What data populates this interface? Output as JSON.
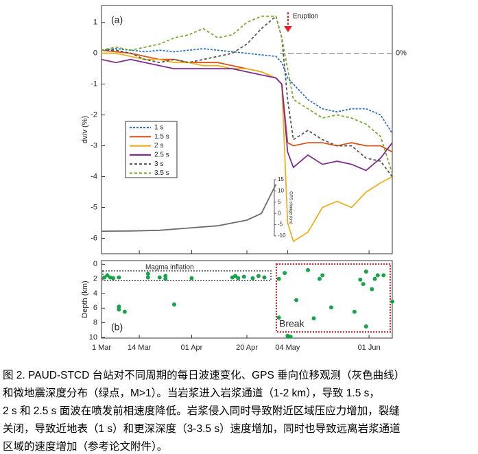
{
  "chart_data": [
    {
      "type": "line",
      "panel_label": "(a)",
      "ylabel": "dv/v (%)",
      "xlim": [
        "03-01",
        "06-09"
      ],
      "ylim": [
        -6.5,
        1.55
      ],
      "yticks": [
        1,
        0,
        -1,
        -2,
        -3,
        -4,
        -5,
        -6
      ],
      "reference_label": "0%",
      "annotation": "Eruption",
      "legend": "left",
      "x": [
        "03-01",
        "03-06",
        "03-11",
        "03-16",
        "03-21",
        "03-26",
        "03-31",
        "04-05",
        "04-10",
        "04-15",
        "04-20",
        "04-25",
        "04-30",
        "05-02",
        "05-04",
        "05-06",
        "05-11",
        "05-16",
        "05-21",
        "05-26",
        "05-31",
        "06-05",
        "06-09"
      ],
      "series": [
        {
          "name": "1 s",
          "color": "#2a72c4",
          "style": "dotted",
          "values": [
            0.1,
            0.15,
            0.1,
            0.05,
            0.1,
            0.05,
            0.1,
            0.15,
            0.1,
            0.05,
            0,
            -0.05,
            -0.1,
            -0.3,
            -0.8,
            -1.0,
            -1.5,
            -1.8,
            -1.9,
            -1.8,
            -1.8,
            -2.0,
            -2.6
          ]
        },
        {
          "name": "1.5 s",
          "color": "#d9541a",
          "style": "solid",
          "values": [
            0.1,
            0.05,
            0,
            -0.1,
            -0.2,
            -0.2,
            -0.3,
            -0.3,
            -0.3,
            -0.4,
            -0.5,
            -0.6,
            -0.8,
            -1.0,
            -2.9,
            -3.0,
            -2.9,
            -2.9,
            -3.0,
            -2.9,
            -3.0,
            -3.0,
            -3.2
          ]
        },
        {
          "name": "2 s",
          "color": "#edb120",
          "style": "solid",
          "values": [
            0,
            0,
            -0.1,
            -0.2,
            -0.2,
            -0.3,
            -0.3,
            -0.4,
            -0.4,
            -0.5,
            -0.5,
            -0.6,
            -0.8,
            -1.0,
            -5.5,
            -6.1,
            -5.8,
            -5.0,
            -4.8,
            -5.0,
            -4.5,
            -4.2,
            -4.0
          ]
        },
        {
          "name": "2.5 s",
          "color": "#7e2f8e",
          "style": "solid",
          "values": [
            -0.2,
            -0.3,
            -0.2,
            -0.3,
            -0.4,
            -0.5,
            -0.5,
            -0.5,
            -0.5,
            -0.5,
            -0.6,
            -0.7,
            -0.8,
            -1.0,
            -3.2,
            -3.7,
            -3.3,
            -3.6,
            -3.5,
            -3.6,
            -3.8,
            -3.4,
            -2.9
          ]
        },
        {
          "name": "3 s",
          "color": "#555555",
          "style": "dashed",
          "values": [
            0.1,
            0.1,
            0,
            -0.2,
            -0.3,
            -0.2,
            -0.3,
            -0.2,
            -0.1,
            0,
            0.3,
            0.8,
            1.2,
            0.5,
            -1.5,
            -2.8,
            -2.5,
            -2.8,
            -3.0,
            -3.0,
            -3.4,
            -3.5,
            -4.0
          ]
        },
        {
          "name": "3.5 s",
          "color": "#77ac30",
          "style": "dashed",
          "values": [
            0.1,
            0.2,
            0.1,
            0.2,
            0.3,
            0.5,
            0.6,
            0.8,
            0.5,
            0.6,
            1.0,
            1.2,
            1.2,
            0.5,
            -0.5,
            -1.5,
            -1.8,
            -2.1,
            -2.0,
            -2.1,
            -2.3,
            -2.7,
            -3.9
          ]
        },
        {
          "name": "GPS change (cm)",
          "color": "#6b6b6b",
          "style": "solid",
          "axis": "y2",
          "x": [
            "03-01",
            "03-11",
            "03-21",
            "03-31",
            "04-10",
            "04-20",
            "04-25",
            "04-30"
          ],
          "values": [
            -7.9,
            -7.8,
            -7.5,
            -6.5,
            -5.5,
            -3.0,
            0,
            13
          ]
        }
      ],
      "y2lim": [
        -10,
        15
      ],
      "y2ticks": [
        15,
        10,
        5,
        0,
        -5,
        -10
      ]
    },
    {
      "type": "scatter",
      "panel_label": "(b)",
      "ylabel": "Depth (km)",
      "color": "#1aa34a",
      "xlim": [
        "03-01",
        "06-09"
      ],
      "ylim": [
        -0.5,
        10.1
      ],
      "y_reversed": true,
      "yticks": [
        0,
        2,
        4,
        6,
        8,
        10
      ],
      "xticks": [
        {
          "value": "03-01",
          "label": "1 Mar"
        },
        {
          "value": "03-14",
          "label": "14 Mar"
        },
        {
          "value": "04-01",
          "label": "01 Apr"
        },
        {
          "value": "04-20",
          "label": "20 Apr"
        },
        {
          "value": "05-04",
          "label": "04 May"
        },
        {
          "value": "06-01",
          "label": "01 Jun"
        }
      ],
      "annotations": [
        "Magma inflation",
        "Break"
      ],
      "x": [
        "03-02",
        "03-03",
        "03-04",
        "03-05",
        "03-07",
        "03-07",
        "03-07",
        "03-09",
        "03-17",
        "03-17",
        "03-21",
        "03-23",
        "03-23",
        "03-26",
        "04-01",
        "04-15",
        "04-16",
        "04-17",
        "04-19",
        "04-22",
        "04-24",
        "04-26",
        "05-01",
        "05-01",
        "05-03",
        "05-04",
        "05-05",
        "05-07",
        "05-11",
        "05-13",
        "05-15",
        "05-16",
        "05-19",
        "05-27",
        "05-29",
        "05-30",
        "05-31",
        "05-31",
        "06-02",
        "06-03",
        "06-04",
        "06-06",
        "06-09"
      ],
      "values": [
        1.8,
        1.5,
        1.8,
        1.9,
        1.8,
        5.8,
        6.2,
        6.5,
        1.3,
        1.8,
        1.8,
        1.6,
        2.0,
        5.5,
        1.9,
        1.8,
        1.6,
        1.9,
        1.7,
        1.9,
        1.6,
        1.8,
        7.3,
        2.0,
        1.2,
        9.8,
        9.9,
        4.9,
        0.8,
        7.4,
        2.0,
        1.5,
        5.9,
        6.5,
        2.1,
        2.7,
        1.0,
        8.5,
        3.4,
        2.0,
        1.5,
        1.5,
        5.1
      ]
    }
  ],
  "caption": [
    "图 2. PAUD-STCD 台站对不同周期的每日波速变化、GPS 垂向位移观测（灰色曲线）",
    "和微地震深度分布（绿点，M>1）。当岩浆进入岩浆通道（1-2 km），导致 1.5 s，",
    "2 s 和 2.5 s 面波在喷发前相速度降低。岩浆侵入同时导致附近区域压应力增加，裂缝",
    "关闭，导致近地表（1 s）和更深深度（3-3.5 s）速度增加，同时也导致远离岩浆通道",
    "区域的速度增加（参考论文附件）。"
  ]
}
